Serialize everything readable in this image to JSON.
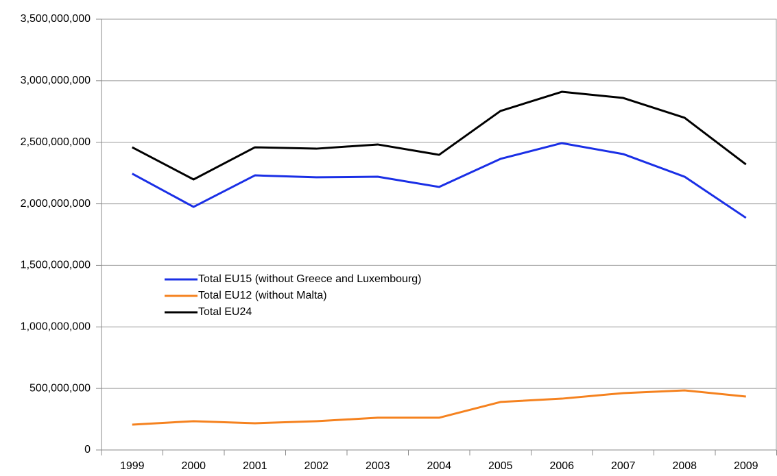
{
  "chart_data": {
    "type": "line",
    "categories": [
      "1999",
      "2000",
      "2001",
      "2002",
      "2003",
      "2004",
      "2005",
      "2006",
      "2007",
      "2008",
      "2009"
    ],
    "series": [
      {
        "name": "Total EU15 (without Greece and Luxembourg)",
        "color": "#1a2fe6",
        "values": [
          2245000000,
          1975000000,
          2231000000,
          2215000000,
          2220000000,
          2137000000,
          2365000000,
          2493000000,
          2404000000,
          2220000000,
          1886000000
        ]
      },
      {
        "name": "Total EU12 (without Malta)",
        "color": "#f5821f",
        "values": [
          206000000,
          234000000,
          217000000,
          234000000,
          262000000,
          262000000,
          390000000,
          417000000,
          462000000,
          484000000,
          434000000
        ]
      },
      {
        "name": "Total EU24",
        "color": "#000000",
        "values": [
          2459000000,
          2198000000,
          2459000000,
          2448000000,
          2482000000,
          2398000000,
          2754000000,
          2910000000,
          2860000000,
          2699000000,
          2320000000
        ]
      }
    ],
    "ylim": [
      0,
      3500000000
    ],
    "yticks": [
      0,
      {
        "value": 500000000,
        "label": "500,000,000"
      },
      {
        "value": 1000000000,
        "label": "1,000,000,000"
      },
      {
        "value": 1500000000,
        "label": "1,500,000,000"
      },
      {
        "value": 2000000000,
        "label": "2,000,000,000"
      },
      {
        "value": 2500000000,
        "label": "2,500,000,000"
      },
      {
        "value": 3000000000,
        "label": "3,000,000,000"
      },
      {
        "value": 3500000000,
        "label": "3,500,000,000"
      }
    ],
    "grid": true
  }
}
